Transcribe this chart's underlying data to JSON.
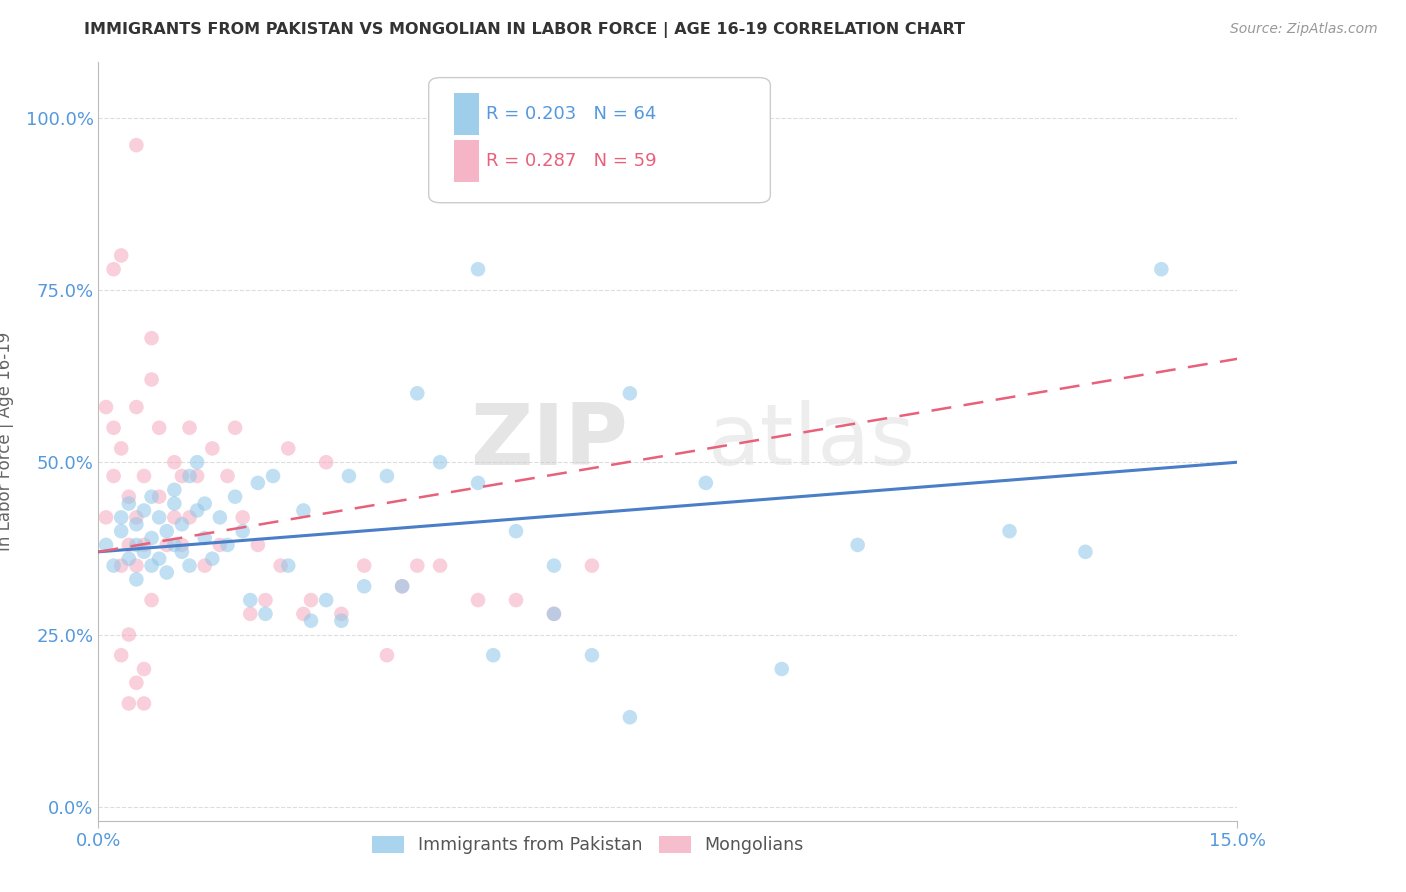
{
  "title": "IMMIGRANTS FROM PAKISTAN VS MONGOLIAN IN LABOR FORCE | AGE 16-19 CORRELATION CHART",
  "source": "Source: ZipAtlas.com",
  "ylabel_label": "In Labor Force | Age 16-19",
  "xlim": [
    0.0,
    0.15
  ],
  "ylim": [
    -0.02,
    1.08
  ],
  "ytick_vals": [
    0.0,
    0.25,
    0.5,
    0.75,
    1.0
  ],
  "ytick_labels": [
    "0.0%",
    "25.0%",
    "50.0%",
    "75.0%",
    "100.0%"
  ],
  "xtick_vals": [
    0.0,
    0.15
  ],
  "xtick_labels": [
    "0.0%",
    "15.0%"
  ],
  "legend_r_blue": "R = 0.203",
  "legend_n_blue": "N = 64",
  "legend_r_pink": "R = 0.287",
  "legend_n_pink": "N = 59",
  "watermark_zip": "ZIP",
  "watermark_atlas": "atlas",
  "blue_color": "#8EC6E8",
  "pink_color": "#F4A8BC",
  "blue_line_color": "#4A7EC7",
  "pink_line_color": "#E8607A",
  "pink_dash_color": "#D4A0B0",
  "title_color": "#333333",
  "axis_label_color": "#666666",
  "tick_color": "#5599DD",
  "grid_color": "#DDDDDD",
  "blue_scatter_x": [
    0.001,
    0.002,
    0.003,
    0.003,
    0.004,
    0.004,
    0.005,
    0.005,
    0.005,
    0.006,
    0.006,
    0.007,
    0.007,
    0.007,
    0.008,
    0.008,
    0.009,
    0.009,
    0.01,
    0.01,
    0.01,
    0.011,
    0.011,
    0.012,
    0.012,
    0.013,
    0.013,
    0.014,
    0.014,
    0.015,
    0.016,
    0.017,
    0.018,
    0.019,
    0.02,
    0.021,
    0.022,
    0.023,
    0.025,
    0.027,
    0.028,
    0.03,
    0.032,
    0.033,
    0.035,
    0.038,
    0.04,
    0.042,
    0.045,
    0.05,
    0.052,
    0.055,
    0.06,
    0.065,
    0.07,
    0.08,
    0.09,
    0.1,
    0.12,
    0.13,
    0.14,
    0.07,
    0.05,
    0.06
  ],
  "blue_scatter_y": [
    0.38,
    0.35,
    0.4,
    0.42,
    0.36,
    0.44,
    0.38,
    0.33,
    0.41,
    0.37,
    0.43,
    0.35,
    0.39,
    0.45,
    0.36,
    0.42,
    0.34,
    0.4,
    0.38,
    0.44,
    0.46,
    0.37,
    0.41,
    0.48,
    0.35,
    0.43,
    0.5,
    0.39,
    0.44,
    0.36,
    0.42,
    0.38,
    0.45,
    0.4,
    0.3,
    0.47,
    0.28,
    0.48,
    0.35,
    0.43,
    0.27,
    0.3,
    0.27,
    0.48,
    0.32,
    0.48,
    0.32,
    0.6,
    0.5,
    0.47,
    0.22,
    0.4,
    0.35,
    0.22,
    0.13,
    0.47,
    0.2,
    0.38,
    0.4,
    0.37,
    0.78,
    0.6,
    0.78,
    0.28
  ],
  "pink_scatter_x": [
    0.001,
    0.001,
    0.002,
    0.002,
    0.003,
    0.003,
    0.004,
    0.004,
    0.005,
    0.005,
    0.005,
    0.006,
    0.006,
    0.007,
    0.007,
    0.008,
    0.008,
    0.009,
    0.01,
    0.01,
    0.011,
    0.011,
    0.012,
    0.012,
    0.013,
    0.014,
    0.015,
    0.016,
    0.017,
    0.018,
    0.019,
    0.02,
    0.021,
    0.022,
    0.024,
    0.025,
    0.027,
    0.028,
    0.03,
    0.032,
    0.035,
    0.038,
    0.04,
    0.042,
    0.045,
    0.05,
    0.055,
    0.06,
    0.065,
    0.003,
    0.004,
    0.005,
    0.006,
    0.007,
    0.002,
    0.003,
    0.004,
    0.005,
    0.006
  ],
  "pink_scatter_y": [
    0.42,
    0.58,
    0.55,
    0.48,
    0.35,
    0.52,
    0.45,
    0.38,
    0.58,
    0.42,
    0.35,
    0.48,
    0.38,
    0.62,
    0.68,
    0.55,
    0.45,
    0.38,
    0.42,
    0.5,
    0.48,
    0.38,
    0.55,
    0.42,
    0.48,
    0.35,
    0.52,
    0.38,
    0.48,
    0.55,
    0.42,
    0.28,
    0.38,
    0.3,
    0.35,
    0.52,
    0.28,
    0.3,
    0.5,
    0.28,
    0.35,
    0.22,
    0.32,
    0.35,
    0.35,
    0.3,
    0.3,
    0.28,
    0.35,
    0.8,
    0.15,
    0.96,
    0.2,
    0.3,
    0.78,
    0.22,
    0.25,
    0.18,
    0.15
  ],
  "blue_trend_x": [
    0.0,
    0.15
  ],
  "blue_trend_y": [
    0.37,
    0.5
  ],
  "pink_trend_x": [
    0.0,
    0.15
  ],
  "pink_trend_y": [
    0.37,
    0.65
  ],
  "background_color": "#FFFFFF"
}
